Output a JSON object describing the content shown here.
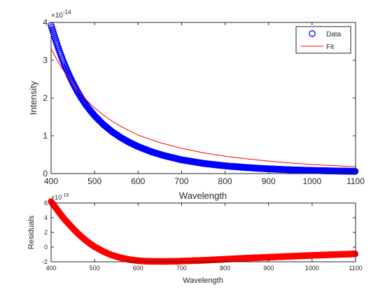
{
  "figure": {
    "background": "#ffffff"
  },
  "chart_data": [
    {
      "type": "scatter",
      "xlabel": "Wavelength",
      "ylabel": "Intensity",
      "xlim": [
        400,
        1100
      ],
      "ylim": [
        0,
        4
      ],
      "y_exponent_label": "×10",
      "y_exponent": "-14",
      "xticks": [
        "400",
        "500",
        "600",
        "700",
        "800",
        "900",
        "1000",
        "1100"
      ],
      "yticks": [
        "0",
        "1",
        "2",
        "3",
        "4"
      ],
      "legend": {
        "placement": "top-right",
        "entries": [
          "Data",
          "Fit"
        ]
      },
      "grid": false,
      "series": [
        {
          "name": "Data",
          "style": "markers",
          "marker": "circle-open",
          "color": "#0000ff",
          "x": [
            400,
            410,
            420,
            430,
            440,
            450,
            460,
            470,
            480,
            490,
            500,
            520,
            540,
            560,
            580,
            600,
            630,
            660,
            700,
            750,
            800,
            850,
            900,
            950,
            1000,
            1050,
            1100
          ],
          "y": [
            3.92,
            3.55,
            3.21,
            2.91,
            2.64,
            2.4,
            2.18,
            1.99,
            1.82,
            1.67,
            1.53,
            1.3,
            1.11,
            0.955,
            0.825,
            0.715,
            0.58,
            0.475,
            0.365,
            0.27,
            0.205,
            0.16,
            0.125,
            0.1,
            0.083,
            0.07,
            0.06
          ]
        },
        {
          "name": "Fit",
          "style": "line",
          "color": "#ff0000",
          "x": [
            400,
            420,
            440,
            460,
            480,
            500,
            520,
            540,
            560,
            600,
            650,
            700,
            750,
            800,
            850,
            900,
            950,
            1000,
            1050,
            1100
          ],
          "y": [
            3.3,
            2.88,
            2.52,
            2.22,
            1.96,
            1.74,
            1.55,
            1.39,
            1.25,
            1.02,
            0.82,
            0.67,
            0.55,
            0.46,
            0.39,
            0.33,
            0.28,
            0.24,
            0.21,
            0.18
          ]
        }
      ]
    },
    {
      "type": "scatter",
      "xlabel": "Wavelength",
      "ylabel": "Residuals",
      "xlim": [
        400,
        1100
      ],
      "ylim": [
        -2,
        6
      ],
      "y_exponent_label": "×10",
      "y_exponent": "-15",
      "xticks": [
        "400",
        "500",
        "600",
        "700",
        "800",
        "900",
        "1000",
        "1100"
      ],
      "yticks": [
        "-2",
        "0",
        "2",
        "4",
        "6"
      ],
      "grid": false,
      "series": [
        {
          "style": "markers",
          "marker": "circle-filled",
          "color": "#ff0000",
          "x": [
            400,
            410,
            420,
            430,
            440,
            450,
            460,
            470,
            480,
            490,
            500,
            520,
            540,
            560,
            580,
            600,
            620,
            640,
            660,
            680,
            700,
            750,
            800,
            850,
            900,
            950,
            1000,
            1050,
            1100
          ],
          "y": [
            6.2,
            5.4,
            4.6,
            3.85,
            3.2,
            2.55,
            1.95,
            1.4,
            0.9,
            0.45,
            0.05,
            -0.6,
            -1.1,
            -1.45,
            -1.7,
            -1.85,
            -1.92,
            -1.95,
            -1.95,
            -1.93,
            -1.9,
            -1.8,
            -1.65,
            -1.5,
            -1.38,
            -1.25,
            -1.13,
            -1.02,
            -0.92
          ]
        }
      ]
    }
  ]
}
